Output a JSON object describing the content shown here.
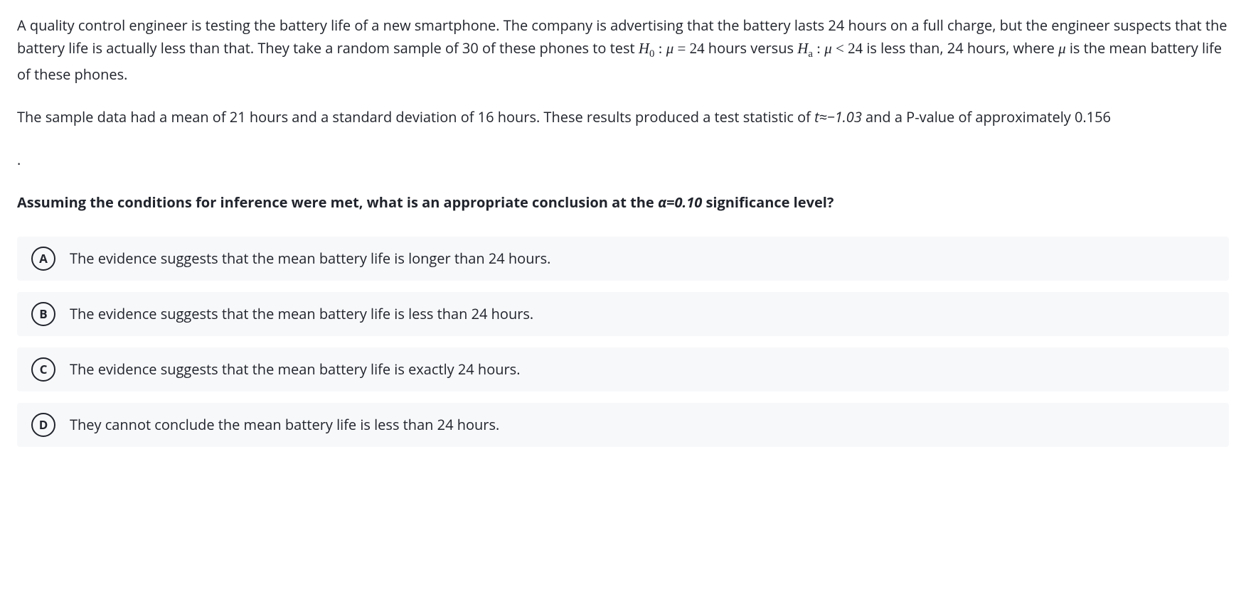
{
  "question": {
    "para1_pre": "A quality control engineer is testing the battery life of a new smartphone. The company is advertising that the battery lasts 24 hours on a full charge, but the engineer suspects that the battery life is actually less than that. They take a random sample of 30 of these phones to test ",
    "h0_label": "H",
    "h0_sub": "0",
    "mu": "μ",
    "eq24": " = 24",
    "hours_versus": " hours versus ",
    "ha_label": "H",
    "ha_sub": "a",
    "lt24": " < 24",
    "para1_post": " is less than, 24 hours, where ",
    "para1_end": " is the mean battery life of these phones.",
    "para2": "The sample data had a mean of 21 hours and a standard deviation of 16 hours. These results produced a test statistic of ",
    "t_stat": "t≈−1.03",
    "para2_mid": " and a P-value of approximately 0.156",
    "dot": ".",
    "prompt_bold": "Assuming the conditions for inference were met, what is an appropriate conclusion at the ",
    "alpha": "α=0.10",
    "prompt_end": " significance level?",
    "colon_space": " : "
  },
  "answers": [
    {
      "letter": "A",
      "text": "The evidence suggests that the mean battery life is longer than 24 hours."
    },
    {
      "letter": "B",
      "text": "The evidence suggests that the mean battery life is less than 24 hours."
    },
    {
      "letter": "C",
      "text": "The evidence suggests that the mean battery life is exactly 24 hours."
    },
    {
      "letter": "D",
      "text": "They cannot conclude the mean battery life is less than 24 hours."
    }
  ],
  "styles": {
    "body_bg": "#ffffff",
    "text_color": "#21242c",
    "option_bg": "#f7f8fa",
    "letter_border": "#21242c",
    "body_fontsize": 20,
    "letter_circle_size": 34
  }
}
